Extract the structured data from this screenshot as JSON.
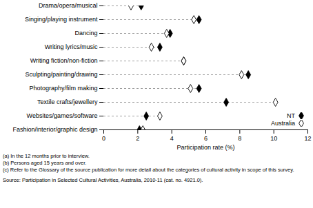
{
  "chart_data": {
    "type": "dot",
    "orientation": "horizontal",
    "categories": [
      "Drama/opera/musical",
      "Singing/playing instrument",
      "Dancing",
      "Writing lyrics/music",
      "Writing fiction/non-fiction",
      "Sculpting/painting/drawing",
      "Photography/film making",
      "Textile crafts/jewellery",
      "Websites/games/software",
      "Fashion/interior/graphic design"
    ],
    "series": [
      {
        "name": "NT",
        "color": "#000000",
        "marker": "filled diamond",
        "values": [
          2.2,
          5.6,
          3.9,
          3.3,
          4.7,
          8.5,
          5.6,
          7.2,
          2.5,
          2.1
        ]
      },
      {
        "name": "Australia",
        "color": "#000000",
        "marker": "hollow diamond",
        "values": [
          1.6,
          5.3,
          3.7,
          2.8,
          4.7,
          8.1,
          5.1,
          10.1,
          3.3,
          2.3
        ]
      }
    ],
    "x_label": "Participation rate (%)",
    "xlim": [
      0,
      12
    ],
    "xticks": [
      0,
      2,
      4,
      6,
      8,
      10,
      12
    ],
    "legend": "lower right",
    "notes": [
      "(a) In the 12 months prior to interview.",
      "(b) Persons aged 15 years and over.",
      "(c) Refer to the Glossary of the source publication for more detail about the categories of cultural activity in scope of this survey."
    ],
    "source": "Source: Participation in Selected Cultural Activities, Australia, 2010-11 (cat. no. 4921.0)."
  }
}
